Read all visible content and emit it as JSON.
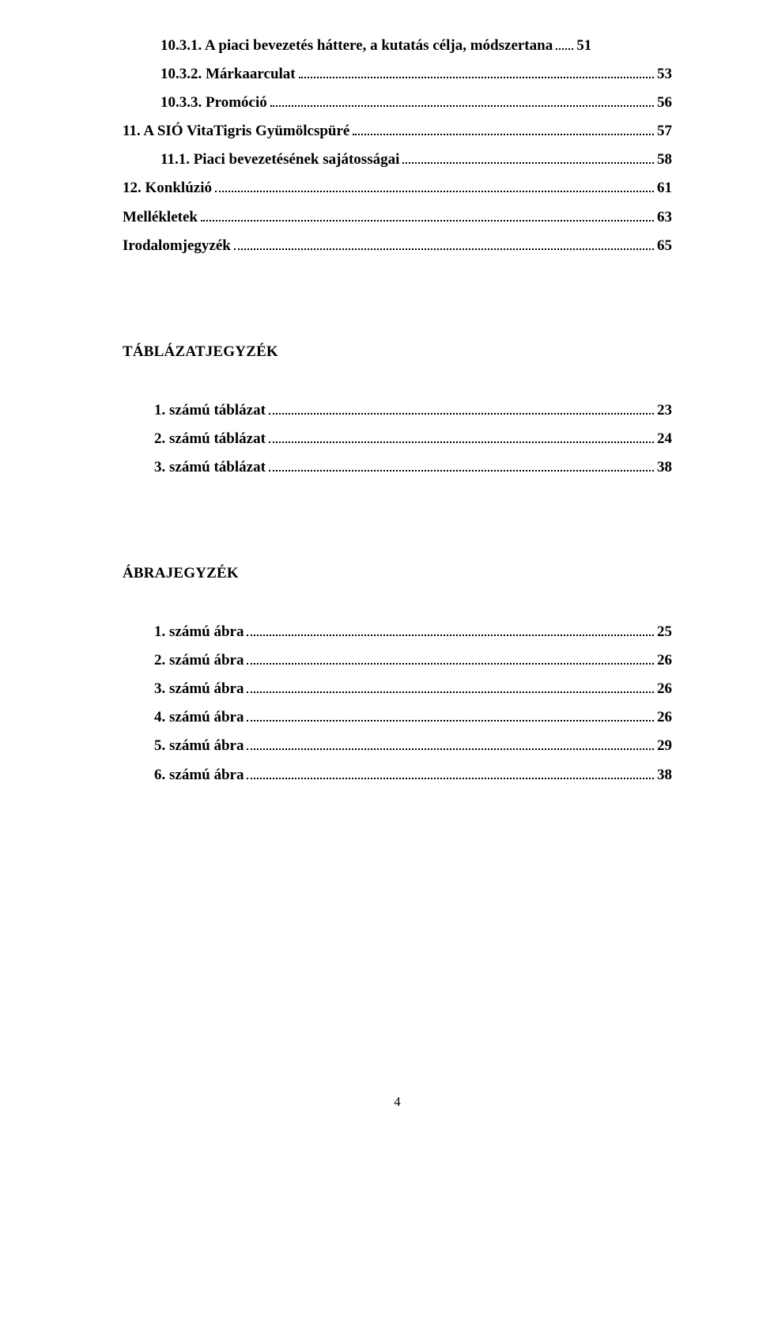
{
  "colors": {
    "background": "#ffffff",
    "text": "#000000",
    "dots": "#000000"
  },
  "typography": {
    "font_family": "Times New Roman",
    "line_fontsize_pt": 14,
    "heading_fontsize_pt": 14,
    "font_weight": "bold"
  },
  "toc_top": [
    {
      "label": "10.3.1. A piaci bevezetés háttere, a kutatás célja, módszertana",
      "page": "51",
      "indent": "indent-1",
      "short_dots": true
    },
    {
      "label": "10.3.2. Márkaarculat",
      "page": "53",
      "indent": "indent-1"
    },
    {
      "label": "10.3.3. Promóció",
      "page": "56",
      "indent": "indent-1"
    },
    {
      "label": "11. A SIÓ VitaTigris Gyümölcspüré",
      "page": "57",
      "indent": ""
    },
    {
      "label": "11.1. Piaci bevezetésének sajátosságai",
      "page": "58",
      "indent": "indent-1"
    },
    {
      "label": "12. Konklúzió",
      "page": "61",
      "indent": ""
    },
    {
      "label": "Mellékletek",
      "page": "63",
      "indent": ""
    },
    {
      "label": "Irodalomjegyzék",
      "page": "65",
      "indent": ""
    }
  ],
  "section_tables": {
    "heading": "TÁBLÁZATJEGYZÉK",
    "items": [
      {
        "label": "1.  számú táblázat",
        "page": "23"
      },
      {
        "label": "2.  számú táblázat",
        "page": "24"
      },
      {
        "label": "3.  számú táblázat",
        "page": "38"
      }
    ]
  },
  "section_figures": {
    "heading": "ÁBRAJEGYZÉK",
    "items": [
      {
        "label": "1.  számú ábra",
        "page": "25"
      },
      {
        "label": "2.  számú ábra",
        "page": "26"
      },
      {
        "label": "3.  számú ábra",
        "page": "26"
      },
      {
        "label": "4.  számú ábra",
        "page": "26"
      },
      {
        "label": "5.  számú ábra",
        "page": "29"
      },
      {
        "label": "6.  számú ábra",
        "page": "38"
      }
    ]
  },
  "page_number": "4"
}
